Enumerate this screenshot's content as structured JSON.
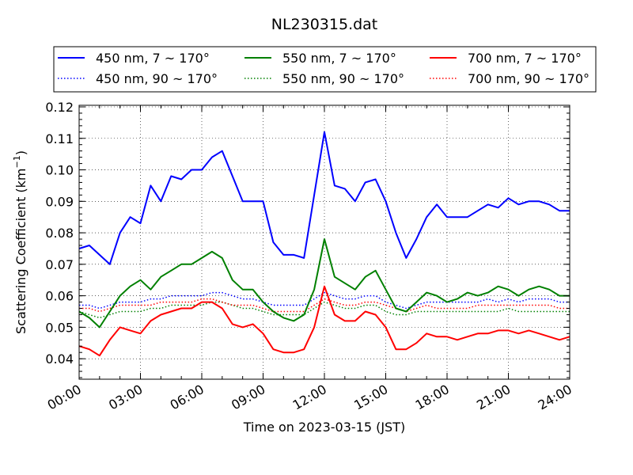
{
  "chart_data": {
    "type": "line",
    "title": "NL230315.dat",
    "xlabel": "Time on 2023-03-15 (JST)",
    "ylabel": "Scattering Coefficient (km",
    "ylabel_sup": "−1",
    "ylabel_end": ")",
    "xlim_hours": [
      0,
      24
    ],
    "ylim": [
      0.0335,
      0.1205
    ],
    "grid": true,
    "legend_placement": "top, above plot, 3 columns",
    "x_tick_labels": [
      "00:00",
      "03:00",
      "06:00",
      "09:00",
      "12:00",
      "15:00",
      "18:00",
      "21:00",
      "24:00"
    ],
    "y_ticks": [
      0.04,
      0.05,
      0.06,
      0.07,
      0.08,
      0.09,
      0.1,
      0.11,
      0.12
    ],
    "y_tick_labels": [
      "0.04",
      "0.05",
      "0.06",
      "0.07",
      "0.08",
      "0.09",
      "0.10",
      "0.11",
      "0.12"
    ],
    "x_hours_step": 0.5,
    "series": [
      {
        "name": "450 nm, 7 ~ 170°",
        "color": "#0000ff",
        "style": "solid",
        "values": [
          0.075,
          0.076,
          0.073,
          0.07,
          0.08,
          0.085,
          0.083,
          0.095,
          0.09,
          0.098,
          0.097,
          0.1,
          0.1,
          0.104,
          0.106,
          0.098,
          0.09,
          0.09,
          0.09,
          0.077,
          0.073,
          0.073,
          0.072,
          0.092,
          0.112,
          0.095,
          0.094,
          0.09,
          0.096,
          0.097,
          0.09,
          0.08,
          0.072,
          0.078,
          0.085,
          0.089,
          0.085,
          0.085,
          0.085,
          0.087,
          0.089,
          0.088,
          0.091,
          0.089,
          0.09,
          0.09,
          0.089,
          0.087,
          0.087
        ]
      },
      {
        "name": "450 nm, 90 ~ 170°",
        "color": "#0000ff",
        "style": "dotted",
        "values": [
          0.057,
          0.057,
          0.056,
          0.057,
          0.058,
          0.058,
          0.058,
          0.059,
          0.059,
          0.06,
          0.06,
          0.06,
          0.06,
          0.061,
          0.061,
          0.06,
          0.059,
          0.059,
          0.058,
          0.057,
          0.057,
          0.057,
          0.057,
          0.059,
          0.061,
          0.06,
          0.059,
          0.059,
          0.06,
          0.06,
          0.058,
          0.057,
          0.056,
          0.057,
          0.058,
          0.058,
          0.058,
          0.058,
          0.058,
          0.058,
          0.059,
          0.058,
          0.059,
          0.058,
          0.059,
          0.059,
          0.059,
          0.058,
          0.058
        ]
      },
      {
        "name": "550 nm, 7 ~ 170°",
        "color": "#008000",
        "style": "solid",
        "values": [
          0.055,
          0.053,
          0.05,
          0.055,
          0.06,
          0.063,
          0.065,
          0.062,
          0.066,
          0.068,
          0.07,
          0.07,
          0.072,
          0.074,
          0.072,
          0.065,
          0.062,
          0.062,
          0.058,
          0.055,
          0.053,
          0.052,
          0.054,
          0.062,
          0.078,
          0.066,
          0.064,
          0.062,
          0.066,
          0.068,
          0.062,
          0.056,
          0.055,
          0.058,
          0.061,
          0.06,
          0.058,
          0.059,
          0.061,
          0.06,
          0.061,
          0.063,
          0.062,
          0.06,
          0.062,
          0.063,
          0.062,
          0.06,
          0.06
        ]
      },
      {
        "name": "550 nm, 90 ~ 170°",
        "color": "#008000",
        "style": "dotted",
        "values": [
          0.055,
          0.054,
          0.053,
          0.054,
          0.055,
          0.055,
          0.055,
          0.056,
          0.056,
          0.057,
          0.057,
          0.057,
          0.057,
          0.058,
          0.058,
          0.057,
          0.056,
          0.056,
          0.055,
          0.054,
          0.054,
          0.054,
          0.054,
          0.056,
          0.058,
          0.057,
          0.056,
          0.056,
          0.057,
          0.057,
          0.055,
          0.054,
          0.054,
          0.055,
          0.055,
          0.055,
          0.055,
          0.055,
          0.055,
          0.055,
          0.055,
          0.055,
          0.056,
          0.055,
          0.055,
          0.055,
          0.055,
          0.055,
          0.055
        ]
      },
      {
        "name": "700 nm, 7 ~ 170°",
        "color": "#ff0000",
        "style": "solid",
        "values": [
          0.044,
          0.043,
          0.041,
          0.046,
          0.05,
          0.049,
          0.048,
          0.052,
          0.054,
          0.055,
          0.056,
          0.056,
          0.058,
          0.058,
          0.056,
          0.051,
          0.05,
          0.051,
          0.048,
          0.043,
          0.042,
          0.042,
          0.043,
          0.05,
          0.063,
          0.054,
          0.052,
          0.052,
          0.055,
          0.054,
          0.05,
          0.043,
          0.043,
          0.045,
          0.048,
          0.047,
          0.047,
          0.046,
          0.047,
          0.048,
          0.048,
          0.049,
          0.049,
          0.048,
          0.049,
          0.048,
          0.047,
          0.046,
          0.047
        ]
      },
      {
        "name": "700 nm, 90 ~ 170°",
        "color": "#ff0000",
        "style": "dotted",
        "values": [
          0.056,
          0.056,
          0.055,
          0.056,
          0.057,
          0.057,
          0.057,
          0.057,
          0.058,
          0.058,
          0.058,
          0.058,
          0.059,
          0.059,
          0.058,
          0.057,
          0.057,
          0.057,
          0.056,
          0.055,
          0.055,
          0.055,
          0.055,
          0.057,
          0.059,
          0.058,
          0.057,
          0.057,
          0.058,
          0.058,
          0.057,
          0.056,
          0.055,
          0.056,
          0.057,
          0.056,
          0.056,
          0.056,
          0.056,
          0.057,
          0.057,
          0.057,
          0.057,
          0.057,
          0.057,
          0.057,
          0.057,
          0.056,
          0.056
        ]
      }
    ]
  }
}
